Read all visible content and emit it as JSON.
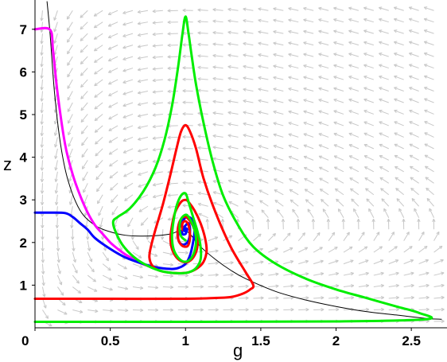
{
  "chart_data": {
    "type": "line",
    "title": "",
    "xlabel": "g",
    "ylabel": "z",
    "xlim": [
      0,
      2.7
    ],
    "ylim": [
      0,
      7.5
    ],
    "grid": false,
    "legend": "none",
    "x_ticks": [
      "0",
      "0.5",
      "1",
      "1.5",
      "2",
      "2.5"
    ],
    "x_tick_values": [
      0,
      0.5,
      1,
      1.5,
      2,
      2.5
    ],
    "y_ticks": [
      "1",
      "2",
      "3",
      "4",
      "5",
      "6",
      "7"
    ],
    "y_tick_values": [
      1,
      2,
      3,
      4,
      5,
      6,
      7
    ],
    "equilibrium": [
      1,
      2.3
    ],
    "series": [
      {
        "color": "#000000",
        "x": [
          0.08,
          0.1,
          0.13,
          0.17,
          0.22,
          0.3,
          0.4,
          0.5,
          0.6,
          0.7,
          0.8,
          0.9,
          1.0,
          1.1,
          1.2,
          1.3,
          1.4,
          1.6,
          1.8,
          2.0,
          2.2,
          2.4,
          2.6,
          2.7
        ],
        "y": [
          7.65,
          6.9,
          5.5,
          4.3,
          3.45,
          2.75,
          2.4,
          2.25,
          2.17,
          2.15,
          2.16,
          2.2,
          2.28,
          1.9,
          1.6,
          1.35,
          1.15,
          0.85,
          0.65,
          0.5,
          0.38,
          0.3,
          0.22,
          0.2
        ]
      },
      {
        "color": "#ff00ff",
        "x": [
          0.0,
          0.1,
          0.12,
          0.15,
          0.2,
          0.25,
          0.3,
          0.35,
          0.4,
          0.45,
          0.5,
          0.55,
          0.6,
          0.65,
          0.7,
          0.75
        ],
        "y": [
          7.0,
          6.99,
          6.5,
          5.5,
          4.3,
          3.6,
          3.1,
          2.7,
          2.4,
          2.2,
          2.0,
          1.85,
          1.72,
          1.62,
          1.52,
          1.45
        ]
      },
      {
        "color": "#0000ff",
        "x": [
          0.0,
          0.1,
          0.2,
          0.25,
          0.3,
          0.35,
          0.4,
          0.5,
          0.6,
          0.7,
          0.8,
          0.9,
          0.95,
          1.0,
          1.03,
          1.05,
          1.06,
          1.05,
          1.02,
          0.99,
          0.96,
          0.95,
          0.96,
          0.99,
          1.02,
          1.03,
          1.02,
          1.0,
          0.98,
          0.98,
          1.0,
          1.01
        ],
        "y": [
          2.7,
          2.7,
          2.69,
          2.6,
          2.45,
          2.3,
          2.1,
          1.85,
          1.65,
          1.52,
          1.42,
          1.38,
          1.4,
          1.5,
          1.7,
          2.0,
          2.3,
          2.5,
          2.6,
          2.55,
          2.35,
          2.15,
          2.0,
          1.95,
          2.05,
          2.3,
          2.45,
          2.4,
          2.3,
          2.2,
          2.2,
          2.3
        ]
      },
      {
        "color": "#ff0000",
        "x": [
          0.0,
          0.5,
          1.0,
          1.2,
          1.3,
          1.38,
          1.43,
          1.45,
          1.4,
          1.3,
          1.2,
          1.12,
          1.07,
          1.03,
          1.0,
          0.97,
          0.94,
          0.9,
          0.85,
          0.8,
          0.77,
          0.76,
          0.78,
          0.82,
          0.88,
          0.95,
          1.02,
          1.08,
          1.12,
          1.14,
          1.13,
          1.1,
          1.06,
          1.02,
          1.0,
          0.97,
          0.93,
          0.91,
          0.9,
          0.91,
          0.94,
          0.98,
          1.02,
          1.06,
          1.08,
          1.07,
          1.04,
          1.0,
          0.97,
          0.95,
          0.95,
          0.97,
          1.0,
          1.02,
          1.03,
          1.02,
          1.0,
          0.98,
          0.98,
          1.0
        ],
        "y": [
          0.68,
          0.68,
          0.68,
          0.7,
          0.72,
          0.8,
          0.9,
          1.0,
          1.3,
          1.9,
          2.7,
          3.5,
          4.2,
          4.6,
          4.75,
          4.6,
          4.2,
          3.6,
          2.9,
          2.3,
          1.9,
          1.65,
          1.45,
          1.35,
          1.3,
          1.28,
          1.3,
          1.4,
          1.55,
          1.8,
          2.1,
          2.45,
          2.75,
          2.95,
          3.0,
          2.95,
          2.7,
          2.4,
          2.1,
          1.85,
          1.65,
          1.55,
          1.55,
          1.7,
          1.95,
          2.2,
          2.45,
          2.6,
          2.55,
          2.35,
          2.1,
          1.95,
          1.9,
          1.95,
          2.15,
          2.4,
          2.5,
          2.45,
          2.3,
          2.3
        ]
      },
      {
        "color": "#00ee00",
        "x": [
          0.0,
          1.0,
          2.0,
          2.6,
          2.55,
          2.4,
          2.2,
          2.0,
          1.8,
          1.6,
          1.45,
          1.35,
          1.25,
          1.18,
          1.12,
          1.07,
          1.04,
          1.02,
          1.0,
          0.98,
          0.95,
          0.91,
          0.86,
          0.8,
          0.72,
          0.63,
          0.55,
          0.52,
          0.53,
          0.58,
          0.66,
          0.75,
          0.85,
          0.95,
          1.02,
          1.07,
          1.1,
          1.1,
          1.08,
          1.05,
          1.02,
          1.0,
          0.97,
          0.94,
          0.92,
          0.91,
          0.92,
          0.95,
          0.99,
          1.03,
          1.06,
          1.07,
          1.05,
          1.02,
          1.0,
          0.97,
          0.96,
          0.97,
          1.0
        ],
        "y": [
          0.14,
          0.14,
          0.15,
          0.2,
          0.35,
          0.5,
          0.7,
          0.9,
          1.15,
          1.5,
          1.9,
          2.4,
          3.1,
          3.9,
          4.8,
          5.7,
          6.4,
          6.9,
          7.3,
          6.9,
          6.1,
          5.2,
          4.4,
          3.75,
          3.2,
          2.8,
          2.6,
          2.5,
          2.3,
          1.95,
          1.65,
          1.45,
          1.32,
          1.28,
          1.3,
          1.4,
          1.6,
          1.9,
          2.25,
          2.6,
          2.95,
          3.15,
          3.1,
          2.85,
          2.5,
          2.15,
          1.85,
          1.65,
          1.55,
          1.6,
          1.8,
          2.1,
          2.4,
          2.6,
          2.65,
          2.55,
          2.35,
          2.15,
          2.05
        ]
      }
    ]
  }
}
